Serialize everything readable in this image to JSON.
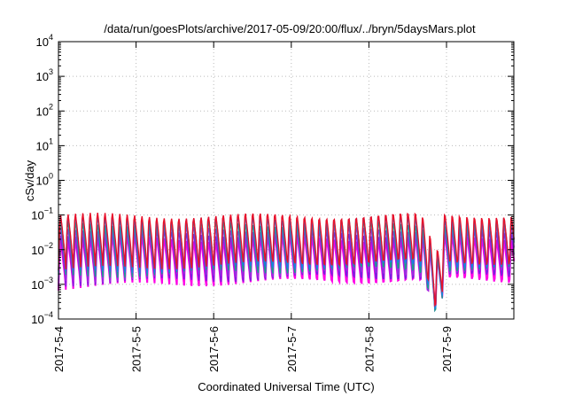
{
  "chart_data": {
    "type": "line",
    "title": "/data/run/goesPlots/archive/2017-05-09/20:00/flux/../bryn/5daysMars.plot",
    "xlabel": "Coordinated Universal Time (UTC)",
    "ylabel": "cSv/day",
    "y_scale": "log",
    "ylim_exponents": [
      -4,
      4
    ],
    "y_tick_exponents": [
      -4,
      -3,
      -2,
      -1,
      0,
      1,
      2,
      3,
      4
    ],
    "y_tick_base": "10",
    "x_tick_labels": [
      "2017-5-4",
      "2017-5-5",
      "2017-5-6",
      "2017-5-7",
      "2017-5-8",
      "2017-5-9"
    ],
    "xlim_days": [
      0,
      5.87
    ],
    "grid": true,
    "series_colors": [
      "#e8102a",
      "#1a7fe0",
      "#1a9e8c",
      "#9a2fe0",
      "#7a1fe0",
      "#ff00e6"
    ],
    "series_level_exponents_peak": [
      -0.92,
      -1.0,
      -1.15,
      -1.3,
      -1.45,
      -1.6
    ],
    "series_level_exponents_trough": [
      -2.6,
      -2.7,
      -2.8,
      -2.9,
      -3.0,
      -3.1
    ],
    "cycles_per_day": 10.5,
    "dip": {
      "day": 4.87,
      "min_exponent": -3.85
    }
  }
}
